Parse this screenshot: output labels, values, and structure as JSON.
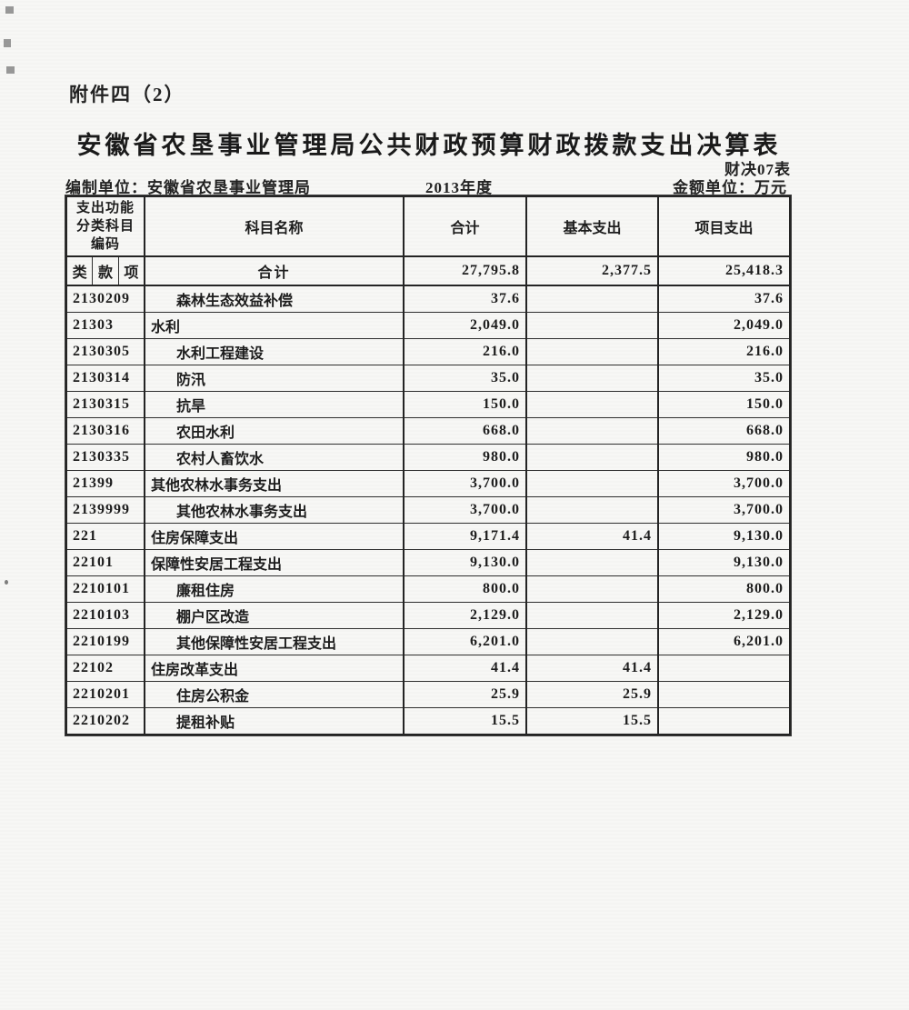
{
  "page": {
    "attachment_label": "附件四（2）",
    "title": "安徽省农垦事业管理局公共财政预算财政拨款支出决算表",
    "form_code": "财决07表",
    "prepared_by_label": "编制单位：",
    "prepared_by": "安徽省农垦事业管理局",
    "fiscal_year": "2013年度",
    "unit_label": "金额单位：万元"
  },
  "table": {
    "headers": {
      "code": "支出功能\n分类科目\n编码",
      "name": "科目名称",
      "total": "合计",
      "basic": "基本支出",
      "project": "项目支出"
    },
    "code_subheaders": [
      "类",
      "款",
      "项"
    ],
    "total_row": {
      "name": "合计",
      "total": "27,795.8",
      "basic": "2,377.5",
      "project": "25,418.3"
    },
    "rows": [
      {
        "code": "2130209",
        "name": "森林生态效益补偿",
        "indent": true,
        "total": "37.6",
        "basic": "",
        "project": "37.6"
      },
      {
        "code": "21303",
        "name": "水利",
        "indent": false,
        "total": "2,049.0",
        "basic": "",
        "project": "2,049.0"
      },
      {
        "code": "2130305",
        "name": "水利工程建设",
        "indent": true,
        "total": "216.0",
        "basic": "",
        "project": "216.0"
      },
      {
        "code": "2130314",
        "name": "防汛",
        "indent": true,
        "total": "35.0",
        "basic": "",
        "project": "35.0"
      },
      {
        "code": "2130315",
        "name": "抗旱",
        "indent": true,
        "total": "150.0",
        "basic": "",
        "project": "150.0"
      },
      {
        "code": "2130316",
        "name": "农田水利",
        "indent": true,
        "total": "668.0",
        "basic": "",
        "project": "668.0"
      },
      {
        "code": "2130335",
        "name": "农村人畜饮水",
        "indent": true,
        "total": "980.0",
        "basic": "",
        "project": "980.0"
      },
      {
        "code": "21399",
        "name": "其他农林水事务支出",
        "indent": false,
        "total": "3,700.0",
        "basic": "",
        "project": "3,700.0"
      },
      {
        "code": "2139999",
        "name": "其他农林水事务支出",
        "indent": true,
        "total": "3,700.0",
        "basic": "",
        "project": "3,700.0"
      },
      {
        "code": "221",
        "name": "住房保障支出",
        "indent": false,
        "total": "9,171.4",
        "basic": "41.4",
        "project": "9,130.0"
      },
      {
        "code": "22101",
        "name": "保障性安居工程支出",
        "indent": false,
        "total": "9,130.0",
        "basic": "",
        "project": "9,130.0"
      },
      {
        "code": "2210101",
        "name": "廉租住房",
        "indent": true,
        "total": "800.0",
        "basic": "",
        "project": "800.0"
      },
      {
        "code": "2210103",
        "name": "棚户区改造",
        "indent": true,
        "total": "2,129.0",
        "basic": "",
        "project": "2,129.0"
      },
      {
        "code": "2210199",
        "name": "其他保障性安居工程支出",
        "indent": true,
        "total": "6,201.0",
        "basic": "",
        "project": "6,201.0"
      },
      {
        "code": "22102",
        "name": "住房改革支出",
        "indent": false,
        "total": "41.4",
        "basic": "41.4",
        "project": ""
      },
      {
        "code": "2210201",
        "name": "住房公积金",
        "indent": true,
        "total": "25.9",
        "basic": "25.9",
        "project": ""
      },
      {
        "code": "2210202",
        "name": "提租补贴",
        "indent": true,
        "total": "15.5",
        "basic": "15.5",
        "project": ""
      }
    ]
  }
}
